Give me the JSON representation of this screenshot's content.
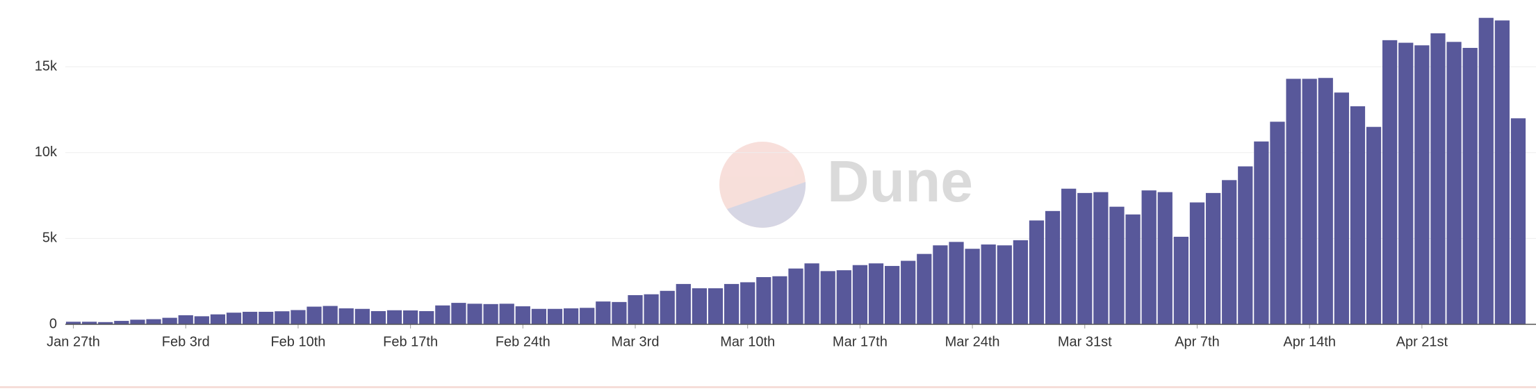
{
  "chart_data": {
    "type": "bar",
    "watermark": "Dune",
    "color": "#58589a",
    "categories": [
      "Jan 27th",
      null,
      null,
      null,
      null,
      null,
      null,
      "Feb 3rd",
      null,
      null,
      null,
      null,
      null,
      null,
      "Feb 10th",
      null,
      null,
      null,
      null,
      null,
      null,
      "Feb 17th",
      null,
      null,
      null,
      null,
      null,
      null,
      "Feb 24th",
      null,
      null,
      null,
      null,
      null,
      null,
      "Mar 3rd",
      null,
      null,
      null,
      null,
      null,
      null,
      "Mar 10th",
      null,
      null,
      null,
      null,
      null,
      null,
      "Mar 17th",
      null,
      null,
      null,
      null,
      null,
      null,
      "Mar 24th",
      null,
      null,
      null,
      null,
      null,
      null,
      "Mar 31st",
      null,
      null,
      null,
      null,
      null,
      null,
      "Apr 7th",
      null,
      null,
      null,
      null,
      null,
      null,
      "Apr 14th",
      null,
      null,
      null,
      null,
      null,
      null,
      "Apr 21st",
      null,
      null,
      null,
      null,
      null,
      null
    ],
    "values": [
      150,
      150,
      130,
      200,
      270,
      300,
      380,
      530,
      470,
      580,
      680,
      730,
      730,
      760,
      830,
      1030,
      1070,
      930,
      900,
      770,
      820,
      810,
      770,
      1100,
      1250,
      1200,
      1180,
      1200,
      1050,
      900,
      900,
      930,
      960,
      1330,
      1300,
      1700,
      1750,
      1950,
      2350,
      2100,
      2100,
      2350,
      2450,
      2750,
      2800,
      3250,
      3550,
      3100,
      3150,
      3450,
      3550,
      3400,
      3700,
      4100,
      4600,
      4800,
      4400,
      4650,
      4600,
      4900,
      6050,
      6600,
      7900,
      7650,
      7700,
      6850,
      6400,
      7800,
      7700,
      5100,
      7100,
      7650,
      8400,
      9200,
      10650,
      11800,
      14300,
      14300,
      14350,
      13500,
      12700,
      11500,
      16550,
      16400,
      16250,
      16950,
      16450,
      16100,
      17850,
      17700,
      12000
    ],
    "ylim": [
      0,
      18000
    ],
    "yticks": [
      0,
      {
        "value": 5000,
        "label": "5k"
      },
      {
        "value": 10000,
        "label": "10k"
      },
      {
        "value": 15000,
        "label": "15k"
      }
    ],
    "grid": true
  }
}
